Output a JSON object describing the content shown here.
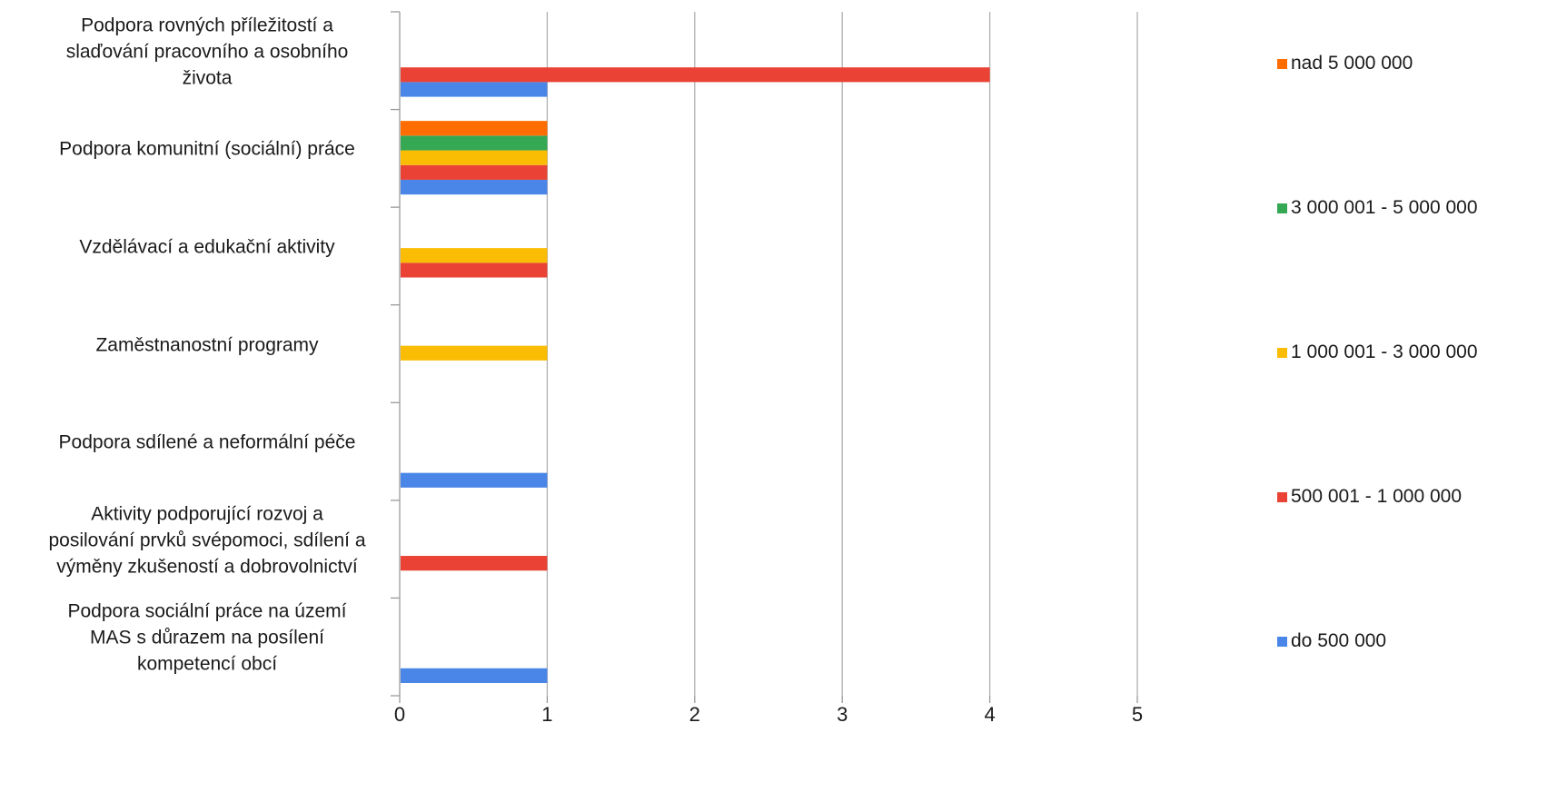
{
  "chart_data": {
    "type": "bar",
    "orientation": "horizontal",
    "title": "",
    "xlabel": "",
    "ylabel": "",
    "xlim": [
      0,
      5
    ],
    "x_ticks": [
      "0",
      "1",
      "2",
      "3",
      "4",
      "5"
    ],
    "grid": "vertical",
    "legend_position": "right",
    "categories": [
      "Podpora rovných příležitostí a\nslaďování pracovního a osobního\nživota",
      "Podpora komunitní (sociální) práce",
      "Vzdělávací a edukační aktivity",
      "Zaměstnanostní programy",
      "Podpora sdílené a neformální péče",
      "Aktivity podporující rozvoj a\nposilování prvků svépomoci, sdílení a\nvýměny zkušeností a dobrovolnictví",
      "Podpora sociální práce na území\nMAS s důrazem na posílení\nkompetencí obcí"
    ],
    "series": [
      {
        "name": "do 500 000",
        "color": "#4a86e8",
        "values": [
          1,
          1,
          0,
          0,
          1,
          0,
          1
        ]
      },
      {
        "name": "500 001 - 1 000 000",
        "color": "#ea4335",
        "values": [
          4,
          1,
          1,
          0,
          0,
          1,
          0
        ]
      },
      {
        "name": "1 000 001 - 3 000 000",
        "color": "#fbbc04",
        "values": [
          0,
          1,
          1,
          1,
          0,
          0,
          0
        ]
      },
      {
        "name": "3 000 001 - 5 000 000",
        "color": "#34a853",
        "values": [
          0,
          1,
          0,
          0,
          0,
          0,
          0
        ]
      },
      {
        "name": "nad 5 000 000",
        "color": "#ff6d01",
        "values": [
          0,
          1,
          0,
          0,
          0,
          0,
          0
        ]
      }
    ]
  }
}
